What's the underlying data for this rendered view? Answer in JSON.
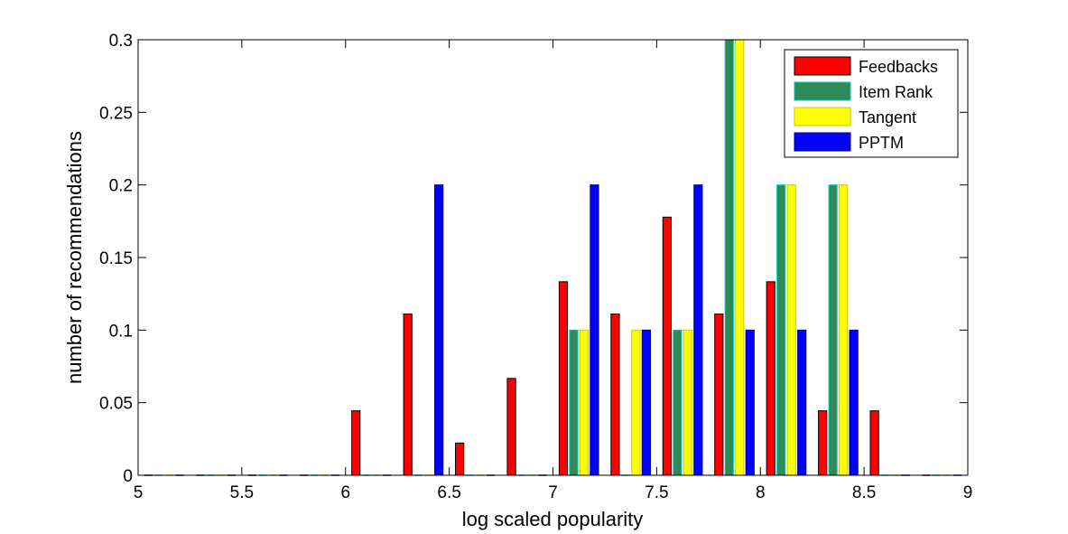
{
  "chart_data": {
    "type": "bar",
    "xlabel": "log scaled popularity",
    "ylabel": "number of recommendations",
    "xlim": [
      5,
      9
    ],
    "ylim": [
      0,
      0.3
    ],
    "xticks": [
      "5",
      "5.5",
      "6",
      "6.5",
      "7",
      "7.5",
      "8",
      "8.5",
      "9"
    ],
    "yticks": [
      "0",
      "0.05",
      "0.1",
      "0.15",
      "0.2",
      "0.25",
      "0.3"
    ],
    "legend_position": "top-right",
    "x": [
      5.125,
      5.375,
      5.625,
      5.875,
      6.125,
      6.375,
      6.625,
      6.875,
      7.125,
      7.375,
      7.625,
      7.875,
      8.125,
      8.375,
      8.625,
      8.875
    ],
    "series": [
      {
        "name": "Feedbacks",
        "color": "#ff0000",
        "edge": "#000000",
        "values": [
          0,
          0,
          0,
          0,
          0.0444,
          0.1111,
          0.0222,
          0.0667,
          0.1333,
          0.1111,
          0.1778,
          0.1111,
          0.1333,
          0.0444,
          0.0444,
          0
        ]
      },
      {
        "name": "Item Rank",
        "color": "#2e8b57",
        "edge": "#00c8c8",
        "values": [
          0,
          0,
          0,
          0,
          0,
          0,
          0,
          0,
          0.1,
          0,
          0.1,
          0.3,
          0.2,
          0.2,
          0,
          0
        ]
      },
      {
        "name": "Tangent",
        "color": "#ffff00",
        "edge": "#c8c800",
        "values": [
          0,
          0,
          0,
          0,
          0,
          0,
          0,
          0,
          0.1,
          0.1,
          0.1,
          0.3,
          0.2,
          0.2,
          0,
          0
        ]
      },
      {
        "name": "PPTM",
        "color": "#0000ff",
        "edge": "#000080",
        "values": [
          0,
          0,
          0,
          0,
          0,
          0.2,
          0,
          0,
          0.2,
          0.1,
          0.2,
          0.1,
          0.1,
          0.1,
          0,
          0
        ]
      }
    ]
  }
}
